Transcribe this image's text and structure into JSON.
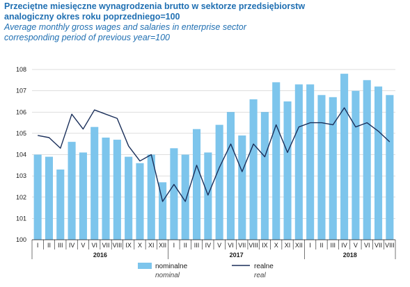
{
  "title_pl_1": "Przeciętne miesięczne wynagrodzenia brutto w sektorze przedsiębiorstw",
  "title_pl_2": "analogiczny okres roku poprzedniego=100",
  "title_en_1": "Average monthly gross wages and salaries in enterprise sector",
  "title_en_2": "corresponding period of previous year=100",
  "colors": {
    "bar": "#7dc5ec",
    "line": "#1a2f5a",
    "title": "#1f6fb2",
    "grid": "#bdbdbd"
  },
  "chart_data": {
    "type": "bar",
    "ylim": [
      100,
      108
    ],
    "yticks": [
      "100",
      "101",
      "102",
      "103",
      "104",
      "105",
      "106",
      "107",
      "108"
    ],
    "categories": [
      "I",
      "II",
      "III",
      "IV",
      "V",
      "VI",
      "VII",
      "VIII",
      "IX",
      "X",
      "XI",
      "XII",
      "I",
      "II",
      "III",
      "IV",
      "V",
      "VI",
      "VII",
      "VIII",
      "IX",
      "X",
      "XI",
      "XII",
      "I",
      "II",
      "III",
      "IV",
      "V",
      "VI",
      "VII",
      "VIII"
    ],
    "years": [
      "2016",
      "2017",
      "2018"
    ],
    "series": [
      {
        "name": "nominalne",
        "name_en": "nominal",
        "kind": "bar",
        "values": [
          104.0,
          103.9,
          103.3,
          104.6,
          104.1,
          105.3,
          104.8,
          104.7,
          103.9,
          103.6,
          104.0,
          102.7,
          104.3,
          104.0,
          105.2,
          104.1,
          105.4,
          106.0,
          104.9,
          106.6,
          106.0,
          107.4,
          106.5,
          107.3,
          107.3,
          106.8,
          106.7,
          107.8,
          107.0,
          107.5,
          107.2,
          106.8
        ]
      },
      {
        "name": "realne",
        "name_en": "real",
        "kind": "line",
        "values": [
          104.9,
          104.8,
          104.3,
          105.9,
          105.2,
          106.1,
          105.9,
          105.7,
          104.4,
          103.7,
          104.0,
          101.8,
          102.6,
          101.8,
          103.5,
          102.1,
          103.4,
          104.5,
          103.2,
          104.5,
          103.9,
          105.4,
          104.1,
          105.3,
          105.5,
          105.5,
          105.4,
          106.2,
          105.3,
          105.5,
          105.1,
          104.6
        ]
      }
    ]
  }
}
